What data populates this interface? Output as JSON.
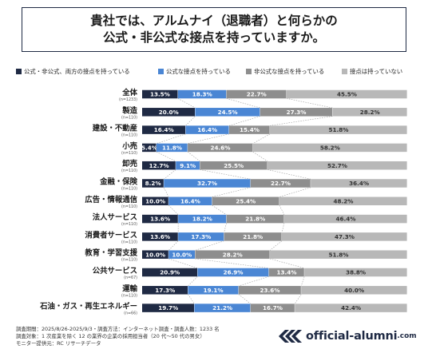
{
  "title": {
    "line1": "貴社では、アルムナイ（退職者）と何らかの",
    "line2": "公式・非公式な接点を持っていますか。"
  },
  "colors": {
    "both": "#1f2a44",
    "official": "#4a86d4",
    "unofficial": "#8e8e8e",
    "none": "#b8b8b8",
    "title_border": "#1f2a44"
  },
  "chart_data": {
    "type": "bar",
    "orientation": "horizontal",
    "stacked": true,
    "percent": true,
    "categories": [
      {
        "label": "全体",
        "n": "(n=1233)"
      },
      {
        "label": "製造",
        "n": "(n=110)"
      },
      {
        "label": "建設・不動産",
        "n": "(n=110)"
      },
      {
        "label": "小売",
        "n": "(n=110)"
      },
      {
        "label": "卸売",
        "n": "(n=110)"
      },
      {
        "label": "金融・保険",
        "n": "(n=110)"
      },
      {
        "label": "広告・情報通信",
        "n": "(n=110)"
      },
      {
        "label": "法人サービス",
        "n": "(n=110)"
      },
      {
        "label": "消費者サービス",
        "n": "(n=110)"
      },
      {
        "label": "教育・学習支援",
        "n": "(n=110)"
      },
      {
        "label": "公共サービス",
        "n": "(n=67)"
      },
      {
        "label": "運輸",
        "n": "(n=110)"
      },
      {
        "label": "石油・ガス・再生エネルギー",
        "n": "(n=66)"
      }
    ],
    "series": [
      {
        "name": "公式・非公式、両方の接点を持っている",
        "color": "#1f2a44",
        "values": [
          13.5,
          20.0,
          16.4,
          5.4,
          12.7,
          8.2,
          10.0,
          13.6,
          13.6,
          10.0,
          20.9,
          17.3,
          19.7
        ],
        "labels": [
          "13.5%",
          "20.0%",
          "16.4%",
          "5.4%",
          "12.7%",
          "8.2%",
          "10.0%",
          "13.6%",
          "13.6%",
          "10.0%",
          "20.9%",
          "17.3%",
          "19.7%"
        ]
      },
      {
        "name": "公式な接点を持っている",
        "color": "#4a86d4",
        "values": [
          18.3,
          24.5,
          16.4,
          11.8,
          9.1,
          32.7,
          16.4,
          18.2,
          17.3,
          10.0,
          26.9,
          19.1,
          21.2
        ],
        "labels": [
          "18.3%",
          "24.5%",
          "16.4%",
          "11.8%",
          "9.1%",
          "32.7%",
          "16.4%",
          "18.2%",
          "17.3%",
          "10.0%",
          "26.9%",
          "19.1%",
          "21.2%"
        ]
      },
      {
        "name": "非公式な接点を持っている",
        "color": "#8e8e8e",
        "values": [
          22.7,
          27.3,
          15.4,
          24.6,
          25.5,
          22.7,
          25.4,
          21.8,
          21.8,
          28.2,
          13.4,
          23.6,
          16.7
        ],
        "labels": [
          "22.7%",
          "27.3%",
          "15.4%",
          "24.6%",
          "25.5%",
          "22.7%",
          "25.4%",
          "21.8%",
          "21.8%",
          "28.2%",
          "13.4%",
          "23.6%",
          "16.7%"
        ]
      },
      {
        "name": "接点は持っていない",
        "color": "#b8b8b8",
        "values": [
          45.5,
          28.2,
          51.8,
          58.2,
          52.7,
          36.4,
          48.2,
          46.4,
          47.3,
          51.8,
          38.8,
          40.0,
          42.4
        ],
        "labels": [
          "45.5%",
          "28.2%",
          "51.8%",
          "58.2%",
          "52.7%",
          "36.4%",
          "48.2%",
          "46.4%",
          "47.3%",
          "51.8%",
          "38.8%",
          "40.0%",
          "42.4%"
        ]
      }
    ],
    "xlim": [
      0,
      100
    ],
    "legend": "top"
  },
  "footer": {
    "line1": "調査期間：2025/8/26-2025/9/3・調査方法：インターネット調査・調査人数：1233 名",
    "line2": "調査対象：1 次産業を除く 12 の業界の企業の採用担当者（20 代～50 代の男女）",
    "line3": "モニター提供元：RC リサーチデータ"
  },
  "logo": {
    "icon": "chevron-arrows-logo-icon",
    "text": "official-alumni",
    "suffix": ".com"
  }
}
